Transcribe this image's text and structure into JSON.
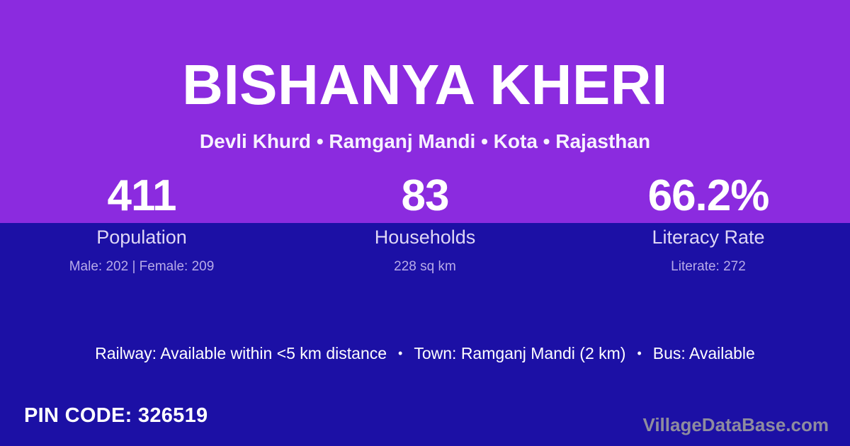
{
  "colors": {
    "background_top": "#8B2BDF",
    "background_bottom": "#1C10A5",
    "primary_text": "#FFFFFF",
    "label_text": "#DED7F5",
    "detail_text": "#B7ABE8",
    "watermark_text": "#8E8C9E"
  },
  "header": {
    "title": "BISHANYA KHERI",
    "subtitle": "Devli Khurd • Ramganj Mandi • Kota • Rajasthan"
  },
  "stats": [
    {
      "value": "411",
      "label": "Population",
      "detail": "Male: 202 | Female: 209"
    },
    {
      "value": "83",
      "label": "Households",
      "detail": "228 sq km"
    },
    {
      "value": "66.2%",
      "label": "Literacy Rate",
      "detail": "Literate: 272"
    }
  ],
  "facilities": {
    "railway": "Railway: Available within <5 km distance",
    "town": "Town: Ramganj Mandi (2 km)",
    "bus": "Bus: Available",
    "separator": "•"
  },
  "footer": {
    "pin_code": "PIN CODE: 326519",
    "watermark": "VillageDataBase.com"
  }
}
